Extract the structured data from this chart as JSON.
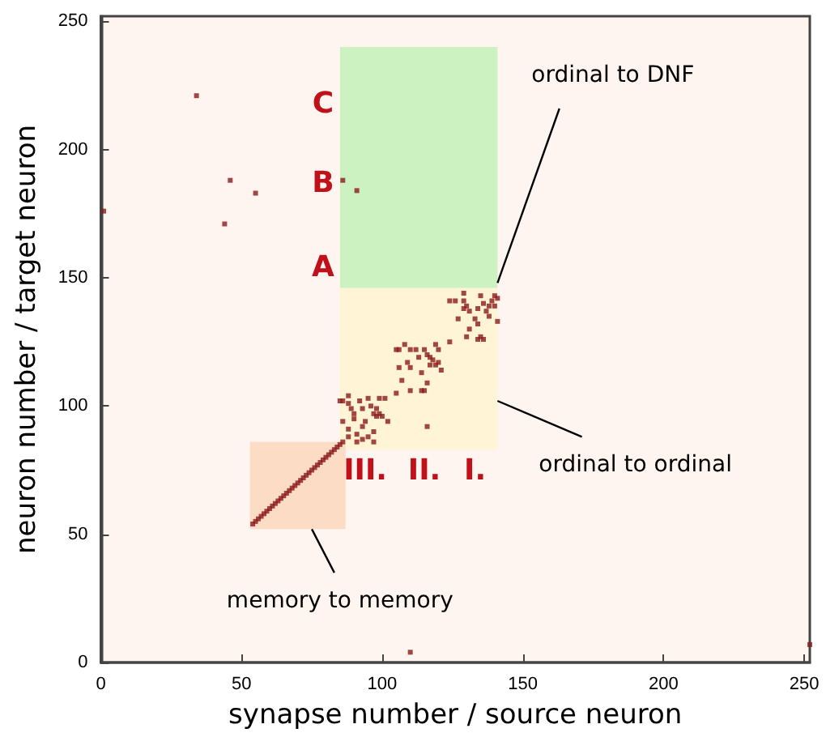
{
  "chart_data": {
    "type": "scatter",
    "xlabel": "synapse number / source neuron",
    "ylabel": "neuron number / target neuron",
    "xlim": [
      0,
      252
    ],
    "ylim": [
      0,
      252
    ],
    "xticks": [
      0,
      50,
      100,
      150,
      200,
      250
    ],
    "yticks": [
      0,
      50,
      100,
      150,
      200,
      250
    ],
    "grid": false,
    "marker": "square",
    "annotations": [
      "C",
      "B",
      "A",
      "III.",
      "II.",
      "I.",
      "ordinal to DNF",
      "ordinal to ordinal",
      "memory to memory"
    ],
    "series": [
      {
        "color": "#8b1a1a",
        "x": [
          54,
          55,
          56,
          57,
          58,
          59,
          60,
          61,
          62,
          63,
          64,
          65,
          66,
          67,
          68,
          69,
          70,
          71,
          72,
          73,
          74,
          75,
          76,
          77,
          78,
          79,
          80,
          81,
          82,
          83,
          84,
          85,
          86,
          85,
          86,
          88,
          88,
          92,
          95,
          99,
          101,
          89,
          90,
          93,
          96,
          98,
          97,
          99,
          100,
          86,
          90,
          94,
          98,
          102,
          88,
          93,
          97,
          91,
          93,
          97,
          91,
          95,
          88,
          105,
          106,
          108,
          110,
          112,
          115,
          119,
          120,
          106,
          109,
          110,
          113,
          116,
          117,
          118,
          117,
          119,
          120,
          121,
          114,
          107,
          116,
          110,
          114,
          115,
          105,
          116,
          124,
          126,
          129,
          130,
          129,
          131,
          135,
          136,
          138,
          139,
          140,
          141,
          134,
          137,
          138,
          140,
          141,
          134,
          127,
          131,
          124,
          130,
          134,
          135,
          136,
          129,
          133,
          34,
          46,
          55,
          44,
          86,
          91,
          1,
          110,
          252
        ],
        "values": [
          54,
          55,
          56,
          57,
          58,
          59,
          60,
          61,
          62,
          63,
          64,
          65,
          66,
          67,
          68,
          69,
          70,
          71,
          72,
          73,
          74,
          75,
          76,
          77,
          78,
          79,
          80,
          81,
          82,
          83,
          84,
          85,
          86,
          102,
          102,
          104,
          101,
          102,
          103,
          103,
          103,
          99,
          97,
          99,
          100,
          99,
          97,
          97,
          96,
          94,
          95,
          94,
          96,
          94,
          91,
          92,
          90,
          89,
          87,
          86,
          86,
          88,
          88,
          122,
          122,
          124,
          122,
          122,
          122,
          124,
          122,
          115,
          117,
          115,
          119,
          120,
          119,
          118,
          116,
          116,
          117,
          114,
          113,
          110,
          109,
          106,
          106,
          106,
          105,
          92,
          141,
          141,
          144,
          139,
          138,
          137,
          143,
          140,
          139,
          141,
          143,
          142,
          138,
          137,
          135,
          139,
          133,
          132,
          134,
          130,
          125,
          127,
          126,
          127,
          126,
          141,
          134,
          221,
          188,
          183,
          171,
          188,
          184,
          176,
          4,
          7
        ]
      }
    ]
  }
}
